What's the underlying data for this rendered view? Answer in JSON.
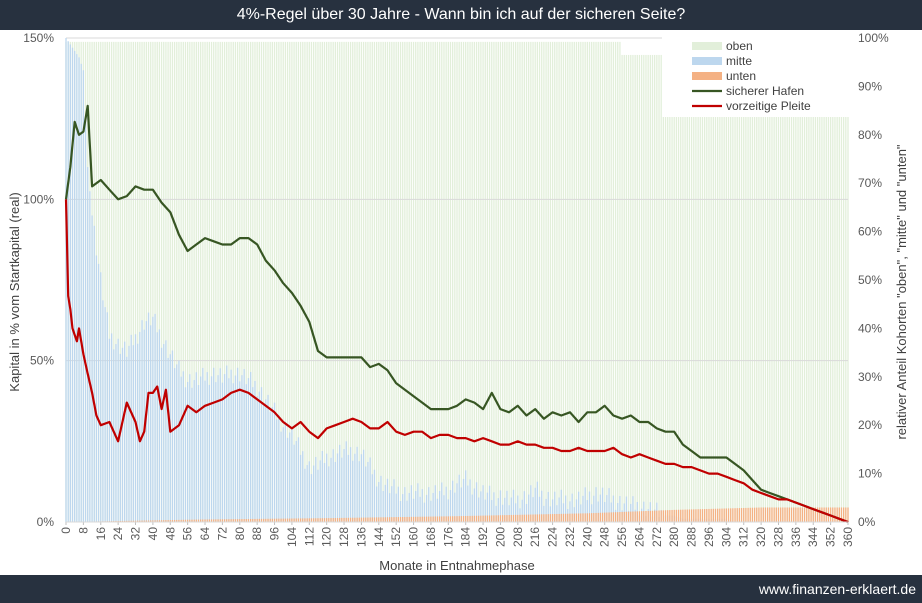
{
  "header": {
    "title": "4%-Regel über 30 Jahre - Wann bin ich auf der sicheren Seite?"
  },
  "footer": {
    "site": "www.finanzen-erklaert.de"
  },
  "chart_data": {
    "type": "line",
    "title": "4%-Regel über 30 Jahre - Wann bin ich auf der sicheren Seite?",
    "xlabel": "Monate in Entnahmephase",
    "ylabel_left": "Kapital in % vom Startkapital (real)",
    "ylabel_right": "relativer Anteil Kohorten \"oben\", \"mitte\" und \"unten\"",
    "x_ticks": [
      "0",
      "8",
      "16",
      "24",
      "32",
      "40",
      "48",
      "56",
      "64",
      "72",
      "80",
      "88",
      "96",
      "104",
      "112",
      "120",
      "128",
      "136",
      "144",
      "152",
      "160",
      "168",
      "176",
      "184",
      "192",
      "200",
      "208",
      "216",
      "224",
      "232",
      "240",
      "248",
      "256",
      "264",
      "272",
      "280",
      "288",
      "296",
      "304",
      "312",
      "320",
      "328",
      "336",
      "344",
      "352",
      "360"
    ],
    "y_left_ticks": [
      "0%",
      "50%",
      "100%",
      "150%"
    ],
    "y_right_ticks": [
      "0%",
      "10%",
      "20%",
      "30%",
      "40%",
      "50%",
      "60%",
      "70%",
      "80%",
      "90%",
      "100%"
    ],
    "xlim": [
      0,
      360
    ],
    "ylim_left": [
      0,
      150
    ],
    "ylim_right": [
      0,
      100
    ],
    "grid": true,
    "legend_position": "top-right",
    "lines": [
      {
        "name": "sicherer Hafen",
        "color": "#375623",
        "x": [
          0,
          2,
          4,
          6,
          8,
          10,
          12,
          16,
          20,
          24,
          28,
          32,
          36,
          40,
          44,
          48,
          52,
          56,
          60,
          64,
          68,
          72,
          76,
          80,
          84,
          88,
          92,
          96,
          100,
          104,
          108,
          112,
          116,
          120,
          128,
          136,
          140,
          144,
          148,
          152,
          156,
          160,
          164,
          168,
          172,
          176,
          180,
          184,
          188,
          192,
          196,
          200,
          204,
          208,
          212,
          216,
          220,
          224,
          228,
          232,
          236,
          240,
          244,
          248,
          252,
          256,
          260,
          264,
          268,
          272,
          276,
          280,
          284,
          288,
          292,
          296,
          300,
          304,
          308,
          312,
          316,
          320,
          324,
          328,
          332,
          336,
          340,
          344,
          348,
          352,
          356,
          360
        ],
        "y": [
          100,
          110,
          124,
          120,
          121,
          129,
          104,
          106,
          103,
          100,
          101,
          104,
          103,
          103,
          99,
          96,
          89,
          84,
          86,
          88,
          87,
          86,
          86,
          88,
          88,
          86,
          81,
          78,
          74,
          71,
          67,
          62,
          53,
          51,
          51,
          51,
          48,
          49,
          47,
          43,
          41,
          39,
          37,
          35,
          35,
          35,
          36,
          38,
          37,
          35,
          40,
          35,
          34,
          36,
          33,
          35,
          32,
          34,
          33,
          34,
          31,
          34,
          34,
          36,
          33,
          32,
          33,
          31,
          31,
          29,
          28,
          28,
          24,
          22,
          20,
          20,
          20,
          20,
          18,
          16,
          13,
          10,
          9,
          8,
          7,
          6,
          5,
          4,
          3,
          2,
          1,
          0
        ]
      },
      {
        "name": "vorzeitige Pleite",
        "color": "#c00000",
        "x": [
          0,
          1,
          2,
          3,
          4,
          5,
          6,
          8,
          10,
          12,
          14,
          16,
          20,
          24,
          28,
          32,
          34,
          36,
          38,
          40,
          42,
          44,
          46,
          48,
          52,
          56,
          60,
          64,
          68,
          72,
          76,
          80,
          84,
          88,
          92,
          96,
          100,
          104,
          108,
          112,
          116,
          120,
          124,
          128,
          132,
          136,
          140,
          144,
          148,
          152,
          156,
          160,
          164,
          168,
          172,
          176,
          180,
          184,
          188,
          192,
          196,
          200,
          204,
          208,
          212,
          216,
          220,
          224,
          228,
          232,
          236,
          240,
          244,
          248,
          252,
          256,
          260,
          264,
          268,
          272,
          276,
          280,
          284,
          288,
          292,
          296,
          300,
          304,
          308,
          312,
          316,
          320,
          324,
          328,
          332,
          336,
          340,
          344,
          348,
          352,
          356,
          360
        ],
        "y": [
          100,
          70,
          66,
          60,
          58,
          56,
          60,
          52,
          46,
          40,
          33,
          30,
          31,
          25,
          37,
          31,
          25,
          28,
          40,
          40,
          42,
          35,
          41,
          28,
          30,
          36,
          34,
          36,
          37,
          38,
          40,
          41,
          40,
          38,
          36,
          34,
          31,
          29,
          31,
          28,
          26,
          29,
          30,
          31,
          32,
          31,
          29,
          29,
          31,
          28,
          27,
          28,
          28,
          26,
          27,
          27,
          26,
          26,
          25,
          26,
          25,
          24,
          24,
          25,
          24,
          24,
          23,
          23,
          22,
          22,
          23,
          22,
          22,
          22,
          23,
          21,
          20,
          21,
          20,
          19,
          18,
          18,
          17,
          17,
          16,
          15,
          15,
          14,
          13,
          12,
          10,
          9,
          8,
          7,
          7,
          6,
          5,
          4,
          3,
          2,
          1,
          0
        ]
      }
    ],
    "bars": [
      {
        "name": "oben",
        "color": "#e2efda",
        "axis": "right",
        "approx_share": "about 99% before month 256, then about 96-97%"
      },
      {
        "name": "mitte",
        "color": "#bdd7ee",
        "axis": "left",
        "x": [
          0,
          2,
          4,
          6,
          8,
          10,
          12,
          14,
          16,
          18,
          20,
          24,
          28,
          32,
          36,
          40,
          44,
          48,
          52,
          56,
          60,
          64,
          68,
          72,
          76,
          80,
          84,
          88,
          92,
          96,
          100,
          104,
          108,
          112,
          116,
          120,
          124,
          128,
          132,
          136,
          140,
          144,
          148,
          152,
          156,
          160,
          164,
          168,
          172,
          176,
          180,
          184,
          188,
          192,
          196,
          200,
          204,
          208,
          212,
          216,
          220,
          224,
          228,
          232,
          236,
          240,
          244,
          248,
          252,
          256,
          260,
          264,
          268,
          272,
          276,
          280,
          284,
          288,
          292,
          296,
          300,
          304,
          308,
          312,
          316,
          320,
          324,
          328,
          332,
          336,
          340,
          344,
          348,
          352,
          356,
          360
        ],
        "y": [
          150,
          148,
          146,
          144,
          140,
          110,
          95,
          85,
          75,
          66,
          58,
          55,
          53,
          57,
          62,
          63,
          57,
          52,
          47,
          44,
          44,
          45,
          46,
          45,
          46,
          46,
          44,
          42,
          38,
          34,
          30,
          27,
          22,
          17,
          18,
          20,
          21,
          22,
          22,
          21,
          17,
          13,
          11,
          10,
          9,
          9,
          9,
          9,
          9,
          10,
          12,
          13,
          11,
          9,
          8,
          8,
          7,
          7,
          8,
          10,
          8,
          7,
          7,
          7,
          7,
          8,
          9,
          8,
          7,
          6,
          5,
          5,
          4,
          3,
          2,
          2,
          1,
          1,
          1,
          1,
          1,
          1,
          0,
          0,
          0,
          0,
          0,
          0,
          0,
          0,
          0,
          0,
          0,
          0,
          0,
          0
        ]
      },
      {
        "name": "unten",
        "color": "#f4b183",
        "axis": "right",
        "x": [
          0,
          60,
          120,
          180,
          240,
          280,
          320,
          360
        ],
        "y": [
          0,
          0.5,
          0.8,
          1.2,
          1.8,
          2.5,
          3,
          3
        ]
      }
    ]
  }
}
